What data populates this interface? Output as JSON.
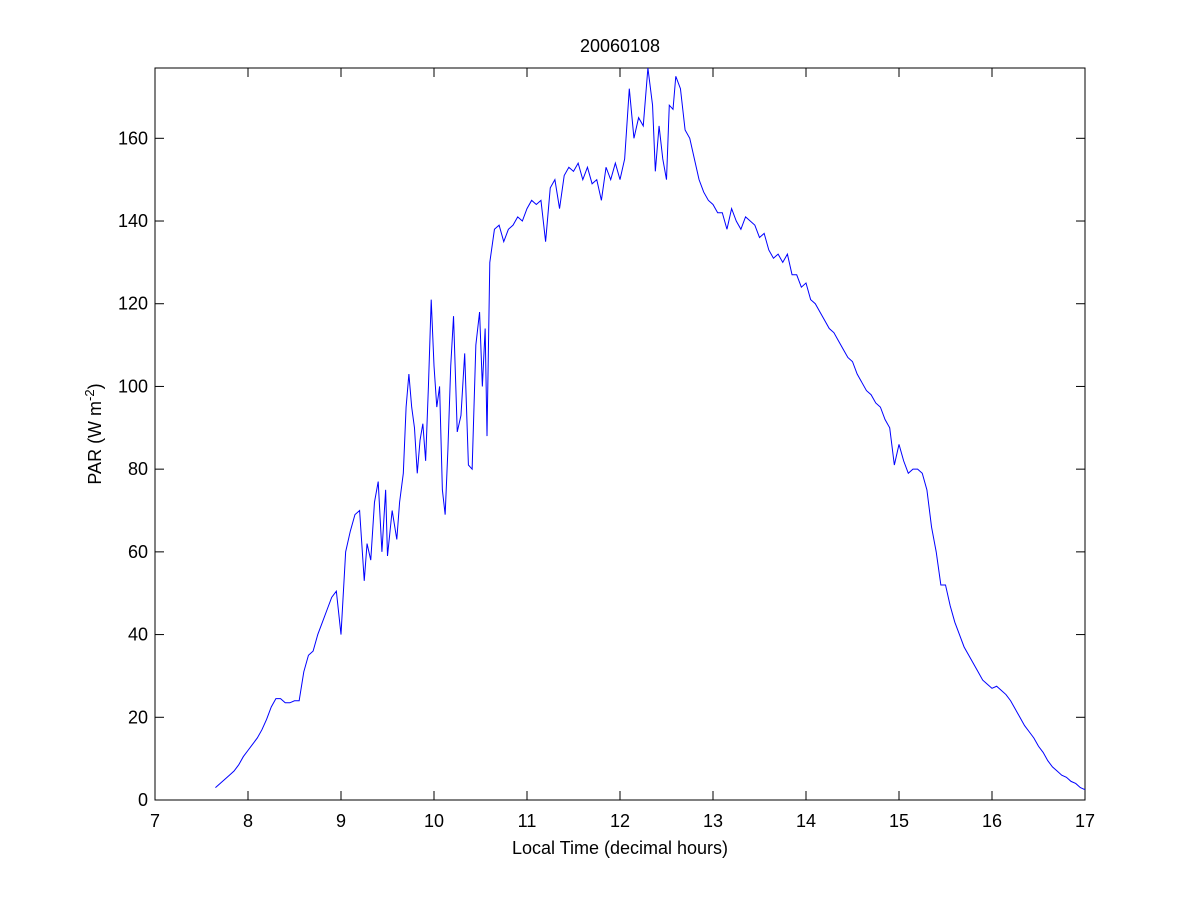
{
  "chart_data": {
    "type": "line",
    "title": "20060108",
    "x_label": "Local Time (decimal hours)",
    "y_label": [
      "PAR (W m",
      "-2",
      ")"
    ],
    "color": "#0000ff",
    "xlim": [
      7,
      17
    ],
    "xticks": [
      7,
      8,
      9,
      10,
      11,
      12,
      13,
      14,
      15,
      16,
      17
    ],
    "ylim": [
      0,
      177
    ],
    "yticks": [
      0,
      20,
      40,
      60,
      80,
      100,
      120,
      140,
      160
    ],
    "x": [
      7.65,
      7.7,
      7.75,
      7.8,
      7.85,
      7.9,
      7.95,
      8.0,
      8.05,
      8.1,
      8.15,
      8.2,
      8.25,
      8.3,
      8.35,
      8.4,
      8.45,
      8.5,
      8.55,
      8.6,
      8.65,
      8.7,
      8.75,
      8.8,
      8.85,
      8.9,
      8.95,
      9.0,
      9.05,
      9.1,
      9.15,
      9.2,
      9.25,
      9.28,
      9.32,
      9.36,
      9.4,
      9.44,
      9.48,
      9.5,
      9.55,
      9.6,
      9.63,
      9.67,
      9.7,
      9.73,
      9.76,
      9.79,
      9.82,
      9.85,
      9.88,
      9.91,
      9.94,
      9.97,
      10.0,
      10.03,
      10.06,
      10.09,
      10.12,
      10.15,
      10.18,
      10.21,
      10.25,
      10.29,
      10.33,
      10.37,
      10.41,
      10.45,
      10.49,
      10.52,
      10.55,
      10.57,
      10.6,
      10.65,
      10.7,
      10.75,
      10.8,
      10.85,
      10.9,
      10.95,
      11.0,
      11.05,
      11.1,
      11.15,
      11.2,
      11.25,
      11.3,
      11.35,
      11.4,
      11.45,
      11.5,
      11.55,
      11.6,
      11.65,
      11.7,
      11.75,
      11.8,
      11.85,
      11.9,
      11.95,
      12.0,
      12.05,
      12.1,
      12.15,
      12.2,
      12.25,
      12.3,
      12.35,
      12.38,
      12.42,
      12.46,
      12.5,
      12.53,
      12.57,
      12.6,
      12.65,
      12.7,
      12.75,
      12.8,
      12.85,
      12.9,
      12.95,
      13.0,
      13.05,
      13.1,
      13.15,
      13.2,
      13.25,
      13.3,
      13.35,
      13.4,
      13.45,
      13.5,
      13.55,
      13.6,
      13.65,
      13.7,
      13.75,
      13.8,
      13.85,
      13.9,
      13.95,
      14.0,
      14.05,
      14.1,
      14.15,
      14.2,
      14.25,
      14.3,
      14.35,
      14.4,
      14.45,
      14.5,
      14.55,
      14.6,
      14.65,
      14.7,
      14.75,
      14.8,
      14.85,
      14.9,
      14.95,
      15.0,
      15.05,
      15.1,
      15.15,
      15.2,
      15.25,
      15.3,
      15.35,
      15.4,
      15.45,
      15.5,
      15.55,
      15.6,
      15.65,
      15.7,
      15.75,
      15.8,
      15.85,
      15.9,
      15.95,
      16.0,
      16.05,
      16.1,
      16.15,
      16.2,
      16.25,
      16.3,
      16.35,
      16.4,
      16.45,
      16.5,
      16.55,
      16.6,
      16.65,
      16.7,
      16.75,
      16.8,
      16.85,
      16.9,
      16.95,
      17.0
    ],
    "values": [
      3,
      4,
      5,
      6,
      7,
      8.5,
      10.5,
      12,
      13.5,
      15,
      17,
      19.5,
      22.5,
      24.5,
      24.5,
      23.5,
      23.5,
      24,
      24,
      31,
      35,
      36,
      40,
      43,
      46,
      49,
      50.5,
      40,
      60,
      65,
      69,
      70,
      53,
      62,
      58,
      72,
      77,
      60,
      75,
      59,
      70,
      63,
      72,
      79,
      95,
      103,
      95,
      90,
      79,
      87,
      91,
      82,
      100,
      121,
      105,
      95,
      100,
      75,
      69,
      85,
      105,
      117,
      89,
      93,
      108,
      81,
      80,
      110,
      118,
      100,
      114,
      88,
      130,
      138,
      139,
      135,
      138,
      139,
      141,
      140,
      143,
      145,
      144,
      145,
      135,
      148,
      150,
      143,
      151,
      153,
      152,
      154,
      150,
      153,
      149,
      150,
      145,
      153,
      150,
      154,
      150,
      155,
      172,
      160,
      165,
      163,
      177,
      168,
      152,
      163,
      155,
      150,
      168,
      167,
      175,
      172,
      162,
      160,
      155,
      150,
      147,
      145,
      144,
      142,
      142,
      138,
      143,
      140,
      138,
      141,
      140,
      139,
      136,
      137,
      133,
      131,
      132,
      130,
      132,
      127,
      127,
      124,
      125,
      121,
      120,
      118,
      116,
      114,
      113,
      111,
      109,
      107,
      106,
      103,
      101,
      99,
      98,
      96,
      95,
      92,
      90,
      81,
      86,
      82,
      79,
      80,
      80,
      79,
      75,
      66,
      60,
      52,
      52,
      47,
      43,
      40,
      37,
      35,
      33,
      31,
      29,
      28,
      27,
      27.5,
      26.5,
      25.5,
      24,
      22,
      20,
      18,
      16.5,
      15,
      13,
      11.5,
      9.5,
      8,
      7,
      6,
      5.5,
      4.5,
      4,
      3,
      2.5
    ]
  }
}
